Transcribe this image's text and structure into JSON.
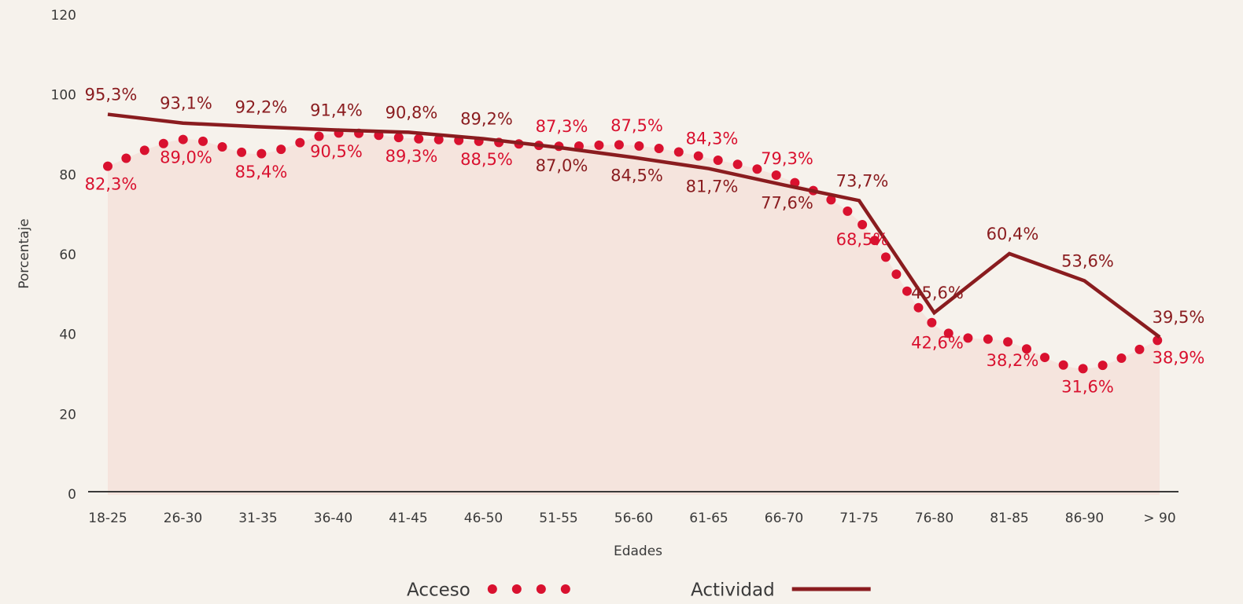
{
  "chart_data": {
    "type": "line",
    "xlabel": "Edades",
    "ylabel": "Porcentaje",
    "categories": [
      "18-25",
      "26-30",
      "31-35",
      "36-40",
      "41-45",
      "46-50",
      "51-55",
      "56-60",
      "61-65",
      "66-70",
      "71-75",
      "76-80",
      "81-85",
      "86-90",
      "> 90"
    ],
    "series": [
      {
        "name": "Acceso",
        "color": "#d9112f",
        "style": "dotted",
        "area_color": "#f5e4dd",
        "values": [
          82.3,
          89.0,
          85.4,
          90.5,
          89.3,
          88.5,
          87.3,
          87.5,
          84.3,
          79.3,
          68.5,
          42.6,
          38.2,
          31.6,
          38.9
        ],
        "value_labels": [
          "82,3%",
          "89,0%",
          "85,4%",
          "90,5%",
          "89,3%",
          "88,5%",
          "87,3%",
          "87,5%",
          "84,3%",
          "79,3%",
          "68,5%",
          "42,6%",
          "38,2%",
          "31,6%",
          "38,9%"
        ]
      },
      {
        "name": "Actividad",
        "color": "#8a1c1f",
        "style": "solid",
        "values": [
          95.3,
          93.1,
          92.2,
          91.4,
          90.8,
          89.2,
          87.0,
          84.5,
          81.7,
          77.6,
          73.7,
          45.6,
          60.4,
          53.6,
          39.5
        ],
        "value_labels": [
          "95,3%",
          "93,1%",
          "92,2%",
          "91,4%",
          "90,8%",
          "89,2%",
          "87,0%",
          "84,5%",
          "81,7%",
          "77,6%",
          "73,7%",
          "45,6%",
          "60,4%",
          "53,6%",
          "39,5%"
        ]
      }
    ],
    "ylim": [
      0,
      120
    ],
    "yticks": [
      0,
      20,
      40,
      60,
      80,
      100,
      120
    ],
    "grid": false,
    "legend": "bottom"
  }
}
